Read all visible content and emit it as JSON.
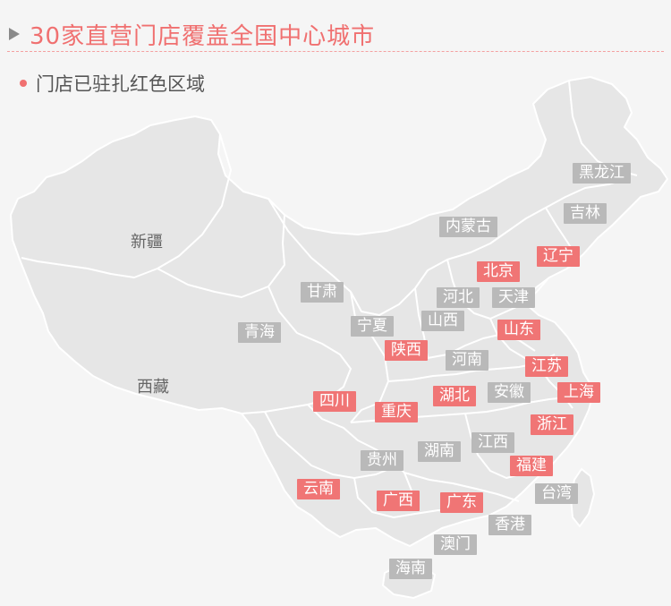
{
  "header": {
    "title": "30家直营门店覆盖全国中心城市"
  },
  "legend": {
    "text": "门店已驻扎红色区域"
  },
  "colors": {
    "accent": "#f07070",
    "store_tag": "#f07575",
    "plain_tag": "#b9b9b9",
    "land": "#e6e6e6",
    "border": "#ffffff",
    "background": "#f5f5f5"
  },
  "map": {
    "province_names": {
      "xinjiang": "新疆",
      "xizang": "西藏"
    },
    "tags": {
      "heilongjiang": {
        "label": "黑龙江",
        "has_store": false
      },
      "jilin": {
        "label": "吉林",
        "has_store": false
      },
      "neimenggu": {
        "label": "内蒙古",
        "has_store": false
      },
      "liaoning": {
        "label": "辽宁",
        "has_store": true
      },
      "beijing": {
        "label": "北京",
        "has_store": true
      },
      "gansu": {
        "label": "甘肃",
        "has_store": false
      },
      "hebei": {
        "label": "河北",
        "has_store": false
      },
      "tianjin": {
        "label": "天津",
        "has_store": false
      },
      "qinghai": {
        "label": "青海",
        "has_store": false
      },
      "ningxia": {
        "label": "宁夏",
        "has_store": false
      },
      "shanxi": {
        "label": "山西",
        "has_store": false
      },
      "shandong": {
        "label": "山东",
        "has_store": true
      },
      "shaanxi": {
        "label": "陕西",
        "has_store": true
      },
      "henan": {
        "label": "河南",
        "has_store": false
      },
      "jiangsu": {
        "label": "江苏",
        "has_store": true
      },
      "sichuan": {
        "label": "四川",
        "has_store": true
      },
      "hubei": {
        "label": "湖北",
        "has_store": true
      },
      "anhui": {
        "label": "安徽",
        "has_store": false
      },
      "shanghai": {
        "label": "上海",
        "has_store": true
      },
      "chongqing": {
        "label": "重庆",
        "has_store": true
      },
      "zhejiang": {
        "label": "浙江",
        "has_store": true
      },
      "jiangxi": {
        "label": "江西",
        "has_store": false
      },
      "guizhou": {
        "label": "贵州",
        "has_store": false
      },
      "hunan": {
        "label": "湖南",
        "has_store": false
      },
      "fujian": {
        "label": "福建",
        "has_store": true
      },
      "yunnan": {
        "label": "云南",
        "has_store": true
      },
      "guangxi": {
        "label": "广西",
        "has_store": true
      },
      "guangdong": {
        "label": "广东",
        "has_store": true
      },
      "taiwan": {
        "label": "台湾",
        "has_store": false
      },
      "xianggang": {
        "label": "香港",
        "has_store": false
      },
      "aomen": {
        "label": "澳门",
        "has_store": false
      },
      "hainan": {
        "label": "海南",
        "has_store": false
      }
    }
  }
}
